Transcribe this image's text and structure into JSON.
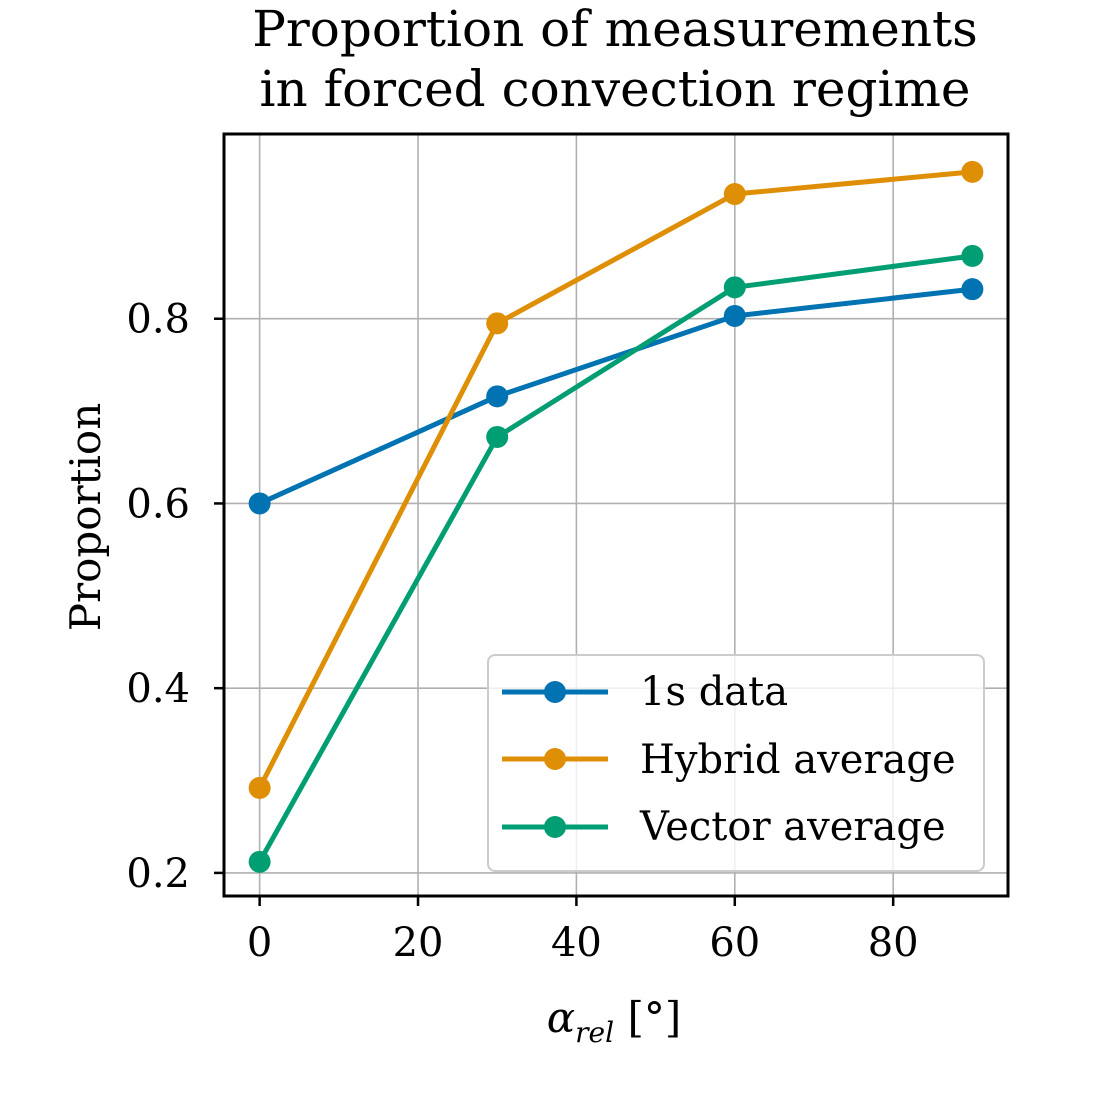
{
  "chart_data": {
    "type": "line",
    "title_lines": [
      "Proportion of measurements",
      "in forced convection regime"
    ],
    "xlabel": {
      "symbol": "α",
      "subscript": "rel",
      "unit": "[°]"
    },
    "ylabel": "Proportion",
    "x": [
      0,
      30,
      60,
      90
    ],
    "xlim": [
      -4.5,
      94.5
    ],
    "ylim": [
      0.175,
      1.0
    ],
    "xticks": [
      0,
      20,
      40,
      60,
      80
    ],
    "xtick_labels": [
      "0",
      "20",
      "40",
      "60",
      "80"
    ],
    "yticks": [
      0.2,
      0.4,
      0.6,
      0.8
    ],
    "ytick_labels": [
      "0.2",
      "0.4",
      "0.6",
      "0.8"
    ],
    "grid": true,
    "legend_position": "lower-right",
    "series": [
      {
        "name": "1s data",
        "color": "#0173b2",
        "values": [
          0.6,
          0.716,
          0.803,
          0.832
        ]
      },
      {
        "name": "Hybrid average",
        "color": "#de8f05",
        "values": [
          0.292,
          0.795,
          0.935,
          0.959
        ]
      },
      {
        "name": "Vector average",
        "color": "#029e73",
        "values": [
          0.212,
          0.672,
          0.834,
          0.868
        ]
      }
    ]
  }
}
